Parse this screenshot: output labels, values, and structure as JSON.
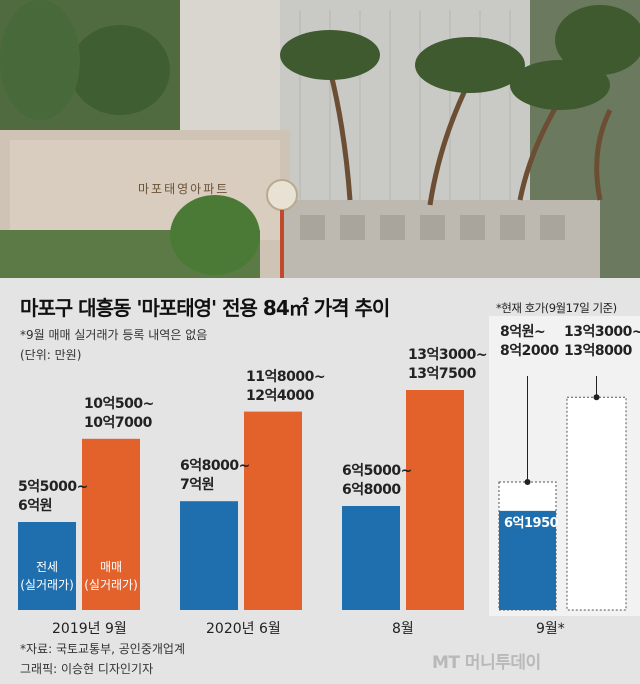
{
  "photo": {
    "sign_text": "마포태영아파트"
  },
  "chart_data": {
    "type": "bar",
    "title": "마포구 대흥동 '마포태영' 전용 84㎡ 가격 추이",
    "note": "*9월 매매 실거래가 등록 내역은 없음",
    "unit": "(단위: 만원)",
    "current_note": "*현재 호가(9월17일 기준)",
    "categories": [
      "2019년 9월",
      "2020년 6월",
      "8월",
      "9월*"
    ],
    "series": [
      {
        "name": "전세 (실거래가)",
        "color": "#1f6fae",
        "values": [
          55000,
          68000,
          65000,
          61950
        ],
        "labels": [
          "5억5000~\n6억원",
          "6억8000~\n7억원",
          "6억5000~\n6억8000",
          "6억1950"
        ]
      },
      {
        "name": "매매 (실거래가)",
        "color": "#e3622c",
        "values": [
          107000,
          124000,
          137500,
          null
        ],
        "labels": [
          "10억500~\n10억7000",
          "11억8000~\n12억4000",
          "13억3000~\n13억7500",
          ""
        ]
      },
      {
        "name": "현재 호가",
        "color": "#ffffff",
        "values": [
          null,
          null,
          null,
          [
            80000,
            82000,
            133000,
            138000
          ]
        ],
        "labels": [
          "",
          "",
          "",
          "8억원~\n8억2000|13억3000~\n13억8000"
        ]
      }
    ],
    "ylim": [
      0,
      160000
    ]
  },
  "footer": {
    "source": "*자료: 국토교통부, 공인중개업계",
    "graphic": "그래픽: 이승현 디자인기자",
    "logo": "MT 머니투데이"
  }
}
